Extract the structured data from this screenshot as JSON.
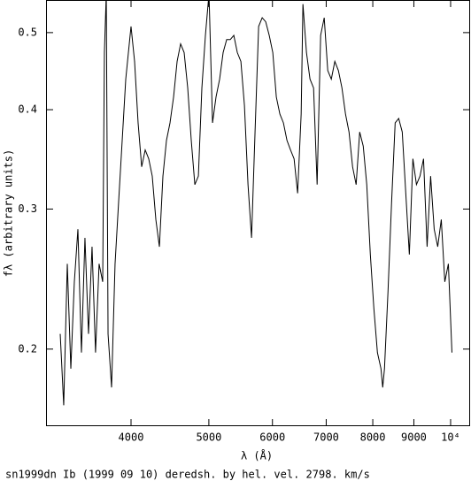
{
  "chart_data": {
    "type": "line",
    "caption": "sn1999dn Ib (1999 09 10) deredsh. by hel. vel.  2798. km/s",
    "x_label": "λ (Å)",
    "y_label": "fλ (arbitrary units)",
    "x_log": true,
    "y_log": true,
    "color": "#000000",
    "xlim": [
      3135,
      10575
    ],
    "ylim": [
      0.16,
      0.5495
    ],
    "xticks": [
      4000,
      5000,
      6000,
      7000,
      8000,
      9000,
      {
        "value": 10000,
        "label": "10⁴"
      }
    ],
    "yticks": [
      0.2,
      0.3,
      0.4,
      0.5
    ],
    "x": [
      3265,
      3298,
      3332,
      3366,
      3400,
      3435,
      3470,
      3505,
      3541,
      3577,
      3613,
      3650,
      3688,
      3706,
      3726,
      3745,
      3783,
      3821,
      3860,
      3900,
      3940,
      3980,
      4000,
      4041,
      4082,
      4124,
      4166,
      4208,
      4251,
      4295,
      4339,
      4383,
      4428,
      4473,
      4519,
      4565,
      4611,
      4658,
      4706,
      4754,
      4803,
      4852,
      4901,
      4951,
      5002,
      5053,
      5104,
      5157,
      5209,
      5262,
      5316,
      5371,
      5425,
      5481,
      5537,
      5594,
      5651,
      5708,
      5767,
      5826,
      5885,
      5945,
      6006,
      6067,
      6129,
      6192,
      6255,
      6319,
      6384,
      6449,
      6515,
      6548,
      6615,
      6682,
      6751,
      6820,
      6889,
      6960,
      7031,
      7103,
      7175,
      7249,
      7323,
      7398,
      7473,
      7550,
      7627,
      7705,
      7784,
      7863,
      7944,
      8025,
      8107,
      8190,
      8231,
      8273,
      8358,
      8443,
      8530,
      8617,
      8705,
      8794,
      8884,
      8975,
      9067,
      9159,
      9253,
      9348,
      9443,
      9540,
      9637,
      9736,
      9835,
      9936,
      10038
    ],
    "values": [
      0.209,
      0.17,
      0.256,
      0.189,
      0.243,
      0.283,
      0.198,
      0.276,
      0.209,
      0.269,
      0.198,
      0.256,
      0.243,
      0.472,
      0.56,
      0.209,
      0.179,
      0.256,
      0.306,
      0.366,
      0.437,
      0.484,
      0.509,
      0.46,
      0.385,
      0.339,
      0.356,
      0.347,
      0.33,
      0.291,
      0.269,
      0.33,
      0.366,
      0.385,
      0.415,
      0.46,
      0.484,
      0.472,
      0.426,
      0.366,
      0.322,
      0.33,
      0.426,
      0.496,
      0.56,
      0.385,
      0.415,
      0.437,
      0.472,
      0.49,
      0.49,
      0.496,
      0.472,
      0.46,
      0.405,
      0.322,
      0.276,
      0.375,
      0.509,
      0.522,
      0.516,
      0.496,
      0.472,
      0.415,
      0.395,
      0.385,
      0.366,
      0.356,
      0.347,
      0.314,
      0.395,
      0.543,
      0.472,
      0.437,
      0.426,
      0.322,
      0.496,
      0.522,
      0.448,
      0.437,
      0.46,
      0.448,
      0.426,
      0.395,
      0.375,
      0.339,
      0.322,
      0.375,
      0.36,
      0.322,
      0.263,
      0.225,
      0.198,
      0.189,
      0.179,
      0.189,
      0.237,
      0.306,
      0.385,
      0.39,
      0.375,
      0.314,
      0.263,
      0.347,
      0.322,
      0.33,
      0.347,
      0.269,
      0.33,
      0.283,
      0.269,
      0.291,
      0.243,
      0.256,
      0.198
    ]
  }
}
